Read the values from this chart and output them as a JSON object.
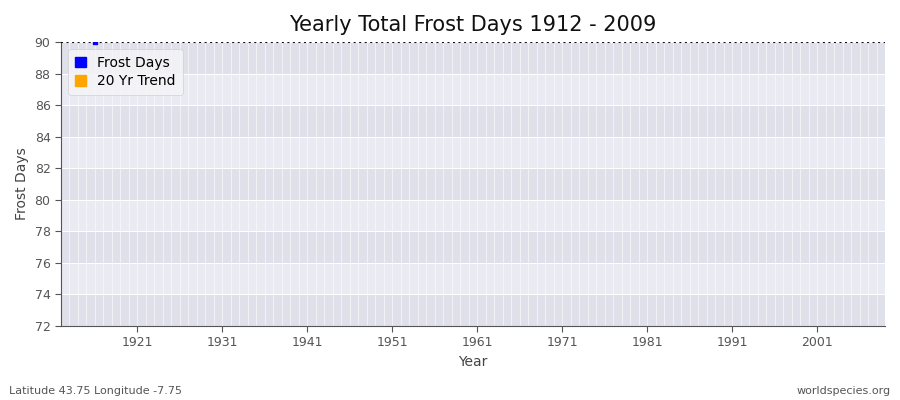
{
  "title": "Yearly Total Frost Days 1912 - 2009",
  "xlabel": "Year",
  "ylabel": "Frost Days",
  "ylim": [
    72,
    90
  ],
  "xlim": [
    1912,
    2009
  ],
  "yticks": [
    72,
    74,
    76,
    78,
    80,
    82,
    84,
    86,
    88,
    90
  ],
  "xticks": [
    1921,
    1931,
    1941,
    1951,
    1961,
    1971,
    1981,
    1991,
    2001
  ],
  "frost_point_x": 1916,
  "frost_point_y": 90,
  "frost_color": "#0000ff",
  "trend_color": "#ffa500",
  "dashed_line_y": 90,
  "dashed_line_color": "#111111",
  "plot_bg_color": "#e8e8f0",
  "fig_bg_color": "#ffffff",
  "grid_color": "#ffffff",
  "band_color_1": "#e0e0ea",
  "band_color_2": "#eaeaf2",
  "subtitle_left": "Latitude 43.75 Longitude -7.75",
  "subtitle_right": "worldspecies.org",
  "title_fontsize": 15,
  "label_fontsize": 10,
  "tick_fontsize": 9,
  "subtitle_fontsize": 8,
  "spine_color": "#555555"
}
